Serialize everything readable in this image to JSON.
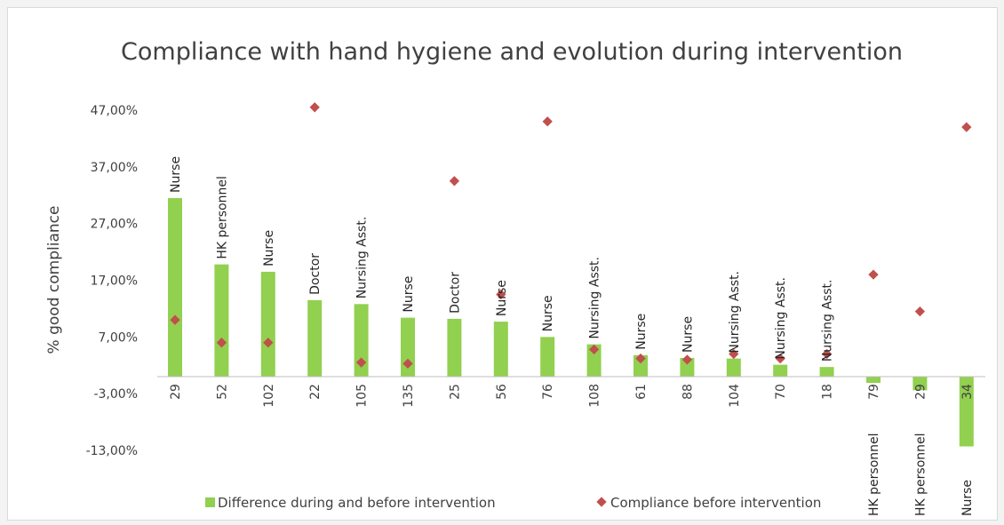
{
  "colors": {
    "bar": "#92d050",
    "marker": "#c0504d",
    "axis": "#bfbfbf",
    "text": "#404040"
  },
  "chart_data": {
    "type": "bar",
    "title": "Compliance with hand hygiene and evolution during intervention",
    "ylabel": "% good compliance",
    "xlabel": "",
    "ylim": [
      -13,
      47
    ],
    "yticks": [
      "47,00%",
      "37,00%",
      "27,00%",
      "17,00%",
      "7,00%",
      "-3,00%",
      "-13,00%"
    ],
    "ytick_values": [
      47,
      37,
      27,
      17,
      7,
      -3,
      -13
    ],
    "categories": [
      "29",
      "52",
      "102",
      "22",
      "105",
      "135",
      "25",
      "56",
      "76",
      "108",
      "61",
      "88",
      "104",
      "70",
      "18",
      "79",
      "29",
      "34"
    ],
    "bar_labels": [
      "Nurse",
      "HK personnel",
      "Nurse",
      "Doctor",
      "Nursing Asst.",
      "Nurse",
      "Doctor",
      "Nurse",
      "Nurse",
      "Nursing Asst.",
      "Nurse",
      "Nurse",
      "Nursing Asst.",
      "Nursing Asst.",
      "Nursing Asst.",
      "HK personnel",
      "HK personnel",
      "Nurse"
    ],
    "series": [
      {
        "name": "Difference during and before intervention",
        "kind": "bar",
        "values": [
          31.5,
          19.8,
          18.5,
          13.5,
          12.8,
          10.4,
          10.2,
          9.7,
          7.0,
          5.7,
          3.8,
          3.3,
          3.2,
          2.1,
          1.7,
          -1.1,
          -2.4,
          -12.3
        ]
      },
      {
        "name": "Compliance before intervention",
        "kind": "marker",
        "values": [
          10.0,
          6.0,
          6.0,
          47.5,
          2.5,
          2.3,
          34.5,
          14.5,
          45.0,
          4.8,
          3.2,
          3.0,
          4.0,
          3.2,
          4.0,
          18.0,
          11.5,
          44.0
        ]
      }
    ],
    "grid": false,
    "legend": "bottom"
  }
}
